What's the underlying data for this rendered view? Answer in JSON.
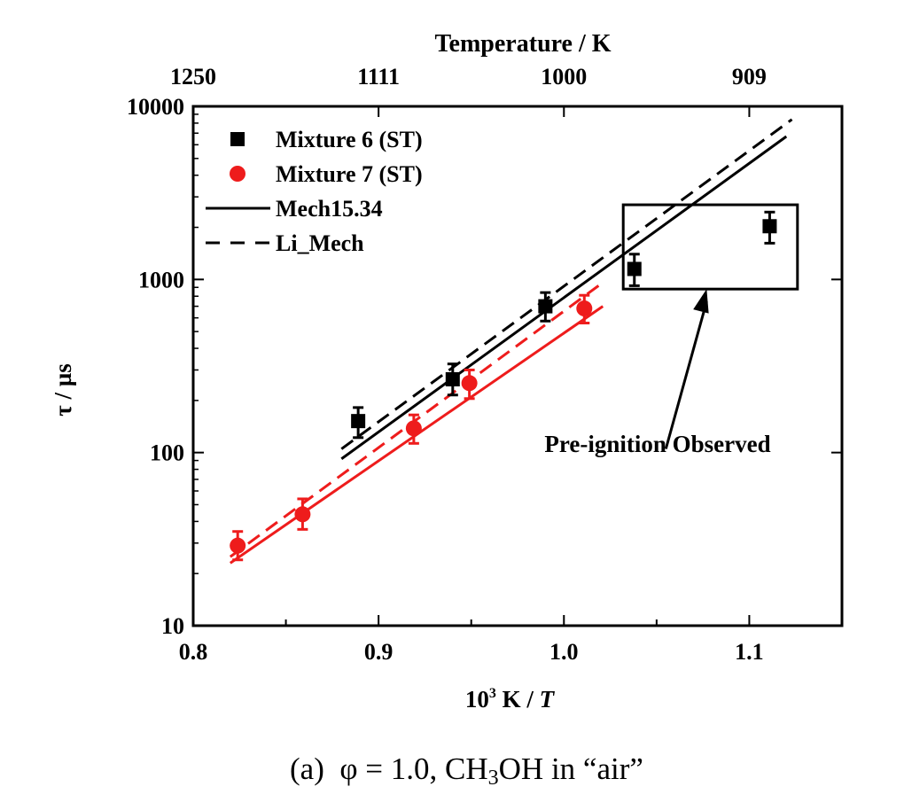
{
  "chart_data": {
    "type": "scatter",
    "xlabel": "10³ K / T",
    "xlabel_parts": {
      "base": "10",
      "sup": "3",
      "mid": " K / ",
      "italic": "T"
    },
    "ylabel": "τ / µs",
    "top_axis_label": "Temperature / K",
    "xlim": [
      0.8,
      1.15
    ],
    "ylim": [
      10,
      10000
    ],
    "yscale": "log",
    "x_ticks": [
      0.8,
      0.9,
      1.0,
      1.1
    ],
    "x_tick_labels": [
      "0.8",
      "0.9",
      "1.0",
      "1.1"
    ],
    "y_ticks": [
      10,
      100,
      1000,
      10000
    ],
    "y_tick_labels": [
      "10",
      "100",
      "1000",
      "10000"
    ],
    "top_ticks": [
      {
        "label": "1250",
        "x": 0.8
      },
      {
        "label": "1111",
        "x": 0.9
      },
      {
        "label": "1000",
        "x": 1.0
      },
      {
        "label": "909",
        "x": 1.1
      }
    ],
    "legend_position": "top-left",
    "series": [
      {
        "name": "Mixture 6 (ST)",
        "kind": "points",
        "marker": "square",
        "color": "#000000",
        "points": [
          {
            "x": 0.889,
            "y": 152,
            "lo": 122,
            "hi": 182
          },
          {
            "x": 0.94,
            "y": 265,
            "lo": 215,
            "hi": 325
          },
          {
            "x": 0.99,
            "y": 700,
            "lo": 575,
            "hi": 840
          },
          {
            "x": 1.038,
            "y": 1150,
            "lo": 920,
            "hi": 1400
          },
          {
            "x": 1.111,
            "y": 2030,
            "lo": 1620,
            "hi": 2450
          }
        ]
      },
      {
        "name": "Mixture 7 (ST)",
        "kind": "points",
        "marker": "circle",
        "color": "#ee1c1c",
        "points": [
          {
            "x": 0.824,
            "y": 29,
            "lo": 24,
            "hi": 35
          },
          {
            "x": 0.859,
            "y": 44,
            "lo": 36,
            "hi": 54
          },
          {
            "x": 0.919,
            "y": 138,
            "lo": 113,
            "hi": 165
          },
          {
            "x": 0.949,
            "y": 252,
            "lo": 205,
            "hi": 300
          },
          {
            "x": 1.011,
            "y": 680,
            "lo": 560,
            "hi": 810
          }
        ]
      },
      {
        "name": "Mech15.34",
        "kind": "line",
        "dash": false,
        "color": "#000000",
        "points": [
          {
            "x": 0.88,
            "y": 92
          },
          {
            "x": 1.12,
            "y": 6700
          }
        ]
      },
      {
        "name": "Li_Mech",
        "kind": "line",
        "dash": true,
        "color": "#000000",
        "points": [
          {
            "x": 0.88,
            "y": 105
          },
          {
            "x": 1.123,
            "y": 8400
          }
        ]
      },
      {
        "kind": "line",
        "dash": false,
        "color": "#ee1c1c",
        "points": [
          {
            "x": 0.82,
            "y": 23
          },
          {
            "x": 1.021,
            "y": 700
          }
        ]
      },
      {
        "kind": "line",
        "dash": true,
        "color": "#ee1c1c",
        "points": [
          {
            "x": 0.82,
            "y": 25
          },
          {
            "x": 1.021,
            "y": 960
          }
        ]
      }
    ],
    "annotation": {
      "text": "Pre-ignition Observed",
      "box": {
        "x0": 1.032,
        "x1": 1.126,
        "y0": 880,
        "y1": 2700
      },
      "arrow_from": {
        "x": 1.055,
        "y": 105
      },
      "arrow_to": {
        "x": 1.077,
        "y": 880
      }
    }
  },
  "caption": {
    "prefix": "(a)  φ = 1.0, CH",
    "sub": "3",
    "suffix": "OH in “air”"
  }
}
